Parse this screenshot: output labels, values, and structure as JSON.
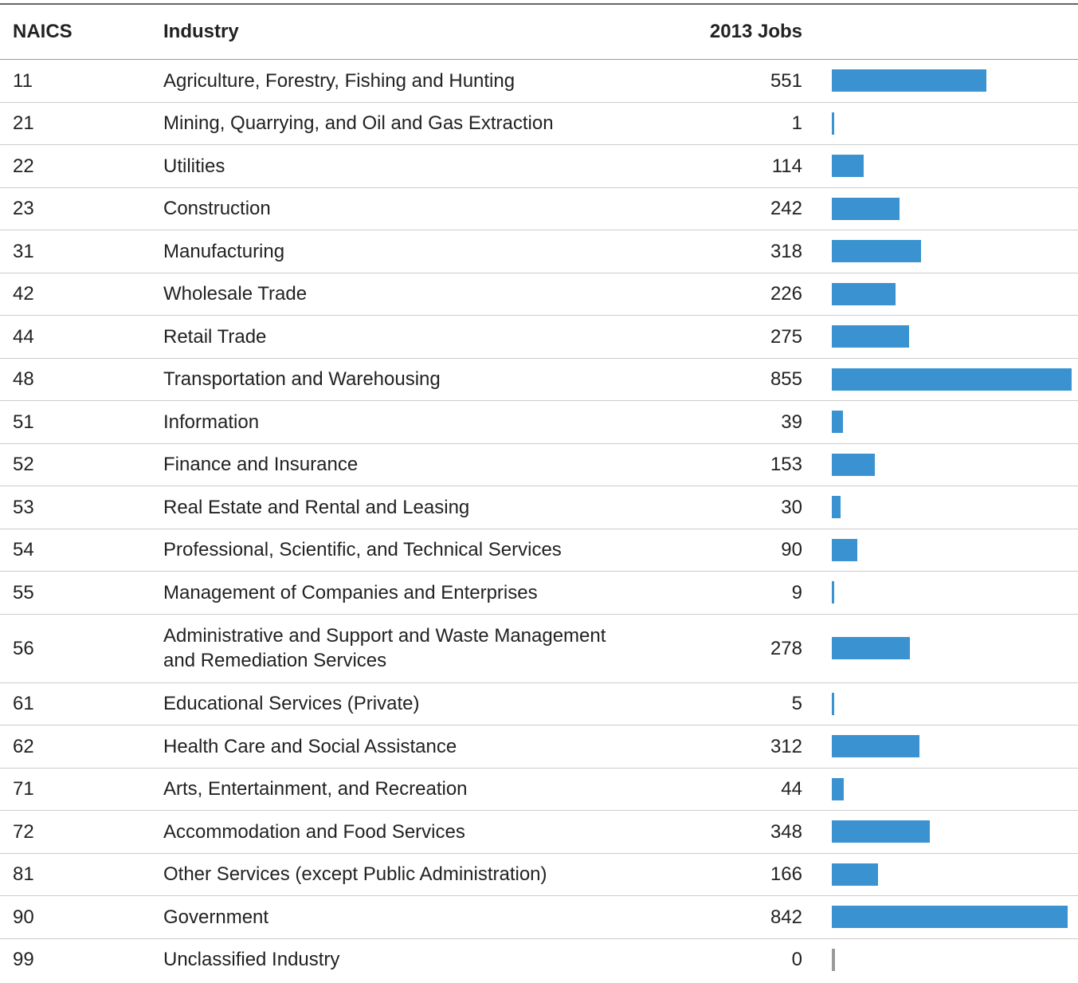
{
  "header": {
    "naics": "NAICS",
    "industry": "Industry",
    "jobs": "2013 Jobs"
  },
  "rows": [
    {
      "naics": "11",
      "industry": "Agriculture, Forestry, Fishing and Hunting",
      "jobs": 551
    },
    {
      "naics": "21",
      "industry": "Mining, Quarrying, and Oil and Gas Extraction",
      "jobs": 1
    },
    {
      "naics": "22",
      "industry": "Utilities",
      "jobs": 114
    },
    {
      "naics": "23",
      "industry": "Construction",
      "jobs": 242
    },
    {
      "naics": "31",
      "industry": "Manufacturing",
      "jobs": 318
    },
    {
      "naics": "42",
      "industry": "Wholesale Trade",
      "jobs": 226
    },
    {
      "naics": "44",
      "industry": "Retail Trade",
      "jobs": 275
    },
    {
      "naics": "48",
      "industry": "Transportation and Warehousing",
      "jobs": 855
    },
    {
      "naics": "51",
      "industry": "Information",
      "jobs": 39
    },
    {
      "naics": "52",
      "industry": "Finance and Insurance",
      "jobs": 153
    },
    {
      "naics": "53",
      "industry": "Real Estate and Rental and Leasing",
      "jobs": 30
    },
    {
      "naics": "54",
      "industry": "Professional, Scientific, and Technical Services",
      "jobs": 90
    },
    {
      "naics": "55",
      "industry": "Management of Companies and Enterprises",
      "jobs": 9
    },
    {
      "naics": "56",
      "industry": "Administrative and Support and Waste Management and Remediation Services",
      "jobs": 278
    },
    {
      "naics": "61",
      "industry": "Educational Services (Private)",
      "jobs": 5
    },
    {
      "naics": "62",
      "industry": "Health Care and Social Assistance",
      "jobs": 312
    },
    {
      "naics": "71",
      "industry": "Arts, Entertainment, and Recreation",
      "jobs": 44
    },
    {
      "naics": "72",
      "industry": "Accommodation and Food Services",
      "jobs": 348
    },
    {
      "naics": "81",
      "industry": "Other Services (except Public Administration)",
      "jobs": 166
    },
    {
      "naics": "90",
      "industry": "Government",
      "jobs": 842
    },
    {
      "naics": "99",
      "industry": "Unclassified Industry",
      "jobs": 0
    }
  ]
}
